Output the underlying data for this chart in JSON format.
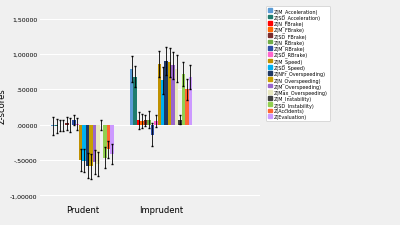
{
  "categories": [
    "Prudent",
    "Imprudent"
  ],
  "series": [
    {
      "label": "Z(M_Acceleration)",
      "color": "#5B9BD5",
      "values": [
        -0.02,
        0.79
      ],
      "errors": [
        0.13,
        0.18
      ]
    },
    {
      "label": "Z(SD_Acceleration)",
      "color": "#1F7C6D",
      "values": [
        -0.02,
        0.68
      ],
      "errors": [
        0.1,
        0.15
      ]
    },
    {
      "label": "Z(N_FBrake)",
      "color": "#FF0000",
      "values": [
        -0.01,
        0.06
      ],
      "errors": [
        0.08,
        0.12
      ]
    },
    {
      "label": "Z(M_FBrake)",
      "color": "#FF6600",
      "values": [
        -0.01,
        0.05
      ],
      "errors": [
        0.08,
        0.1
      ]
    },
    {
      "label": "Z(SD_FBrake)",
      "color": "#7B2C2C",
      "values": [
        0.02,
        0.06
      ],
      "errors": [
        0.09,
        0.08
      ]
    },
    {
      "label": "Z(N_RBrake)",
      "color": "#70AD47",
      "values": [
        -0.01,
        0.07
      ],
      "errors": [
        0.1,
        0.12
      ]
    },
    {
      "label": "Z(M_RBrake)",
      "color": "#2E4EA6",
      "values": [
        0.06,
        -0.14
      ],
      "errors": [
        0.07,
        0.16
      ]
    },
    {
      "label": "Z(SD_RBrake)",
      "color": "#FF66CC",
      "values": [
        0.01,
        0.05
      ],
      "errors": [
        0.08,
        0.08
      ]
    },
    {
      "label": "Z(M_Speed)",
      "color": "#BF9000",
      "values": [
        -0.5,
        0.86
      ],
      "errors": [
        0.15,
        0.18
      ]
    },
    {
      "label": "Z(SD_Speed)",
      "color": "#00B0F0",
      "values": [
        -0.51,
        0.63
      ],
      "errors": [
        0.16,
        0.19
      ]
    },
    {
      "label": "Z(NFr_Overspeeding)",
      "color": "#1F3864",
      "values": [
        -0.58,
        0.9
      ],
      "errors": [
        0.18,
        0.2
      ]
    },
    {
      "label": "Z(N_Overspeeding)",
      "color": "#C8A000",
      "values": [
        -0.59,
        0.88
      ],
      "errors": [
        0.18,
        0.2
      ]
    },
    {
      "label": "Z(M_Overspeeding)",
      "color": "#9966CC",
      "values": [
        -0.53,
        0.84
      ],
      "errors": [
        0.17,
        0.19
      ]
    },
    {
      "label": "Z(Max_Overspeeding)",
      "color": "#E8E8C0",
      "values": [
        -0.55,
        0.79
      ],
      "errors": [
        0.17,
        0.19
      ]
    },
    {
      "label": "Z(M_Instability)",
      "color": "#404040",
      "values": [
        -0.01,
        0.07
      ],
      "errors": [
        0.07,
        0.06
      ]
    },
    {
      "label": "Z(SD_Instability)",
      "color": "#92D050",
      "values": [
        -0.47,
        0.72
      ],
      "errors": [
        0.15,
        0.17
      ]
    },
    {
      "label": "Z(Accidents)",
      "color": "#FF6633",
      "values": [
        -0.35,
        0.5
      ],
      "errors": [
        0.12,
        0.15
      ]
    },
    {
      "label": "Z(Evaluation)",
      "color": "#CC99FF",
      "values": [
        -0.42,
        0.68
      ],
      "errors": [
        0.14,
        0.17
      ]
    }
  ],
  "ylim": [
    -1.1,
    1.65
  ],
  "yticks": [
    -1.0,
    -0.5,
    0.0,
    0.5,
    1.0,
    1.5
  ],
  "ytick_labels": [
    "-1,00000",
    "-.50000",
    ".00000",
    ".50000",
    "1,00000",
    "1,50000"
  ],
  "ylabel": "Z-scores",
  "background_color": "#F0F0F0",
  "group_centers": [
    0.22,
    0.72
  ],
  "bar_width": 0.022,
  "xlim": [
    -0.05,
    1.35
  ]
}
